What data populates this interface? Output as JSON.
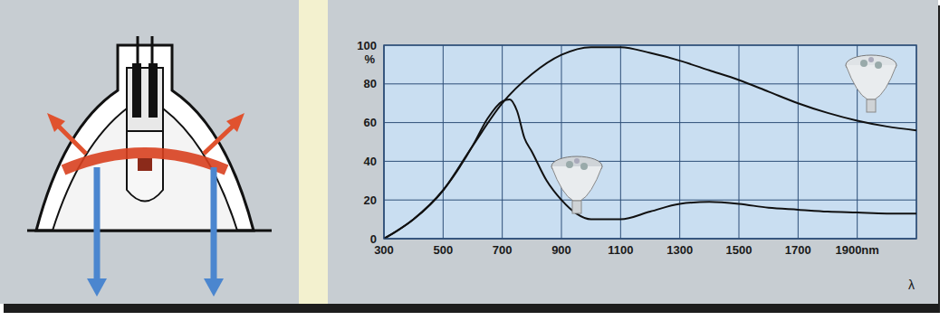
{
  "chart_data": {
    "type": "line",
    "x_label": "λ",
    "y_label": "%",
    "xlim": [
      300,
      2100
    ],
    "xticks": [
      300,
      500,
      700,
      900,
      1100,
      1300,
      1500,
      {
        "value": 1700,
        "label": "1700"
      },
      {
        "value": 1900,
        "label": "1900nm"
      }
    ],
    "ylim": [
      0,
      100
    ],
    "yticks": [
      0,
      20,
      40,
      60,
      80,
      100
    ],
    "grid": true,
    "series": [
      {
        "color": "#111111",
        "line_style": "solid",
        "x": [
          300,
          400,
          500,
          600,
          700,
          800,
          900,
          1000,
          1100,
          1200,
          1300,
          1400,
          1500,
          1600,
          1700,
          1800,
          1900,
          2000,
          2100
        ],
        "values": [
          0,
          10,
          25,
          48,
          70,
          85,
          95,
          99,
          99,
          96,
          92,
          87,
          82,
          76,
          70,
          65,
          61,
          58,
          56
        ]
      },
      {
        "color": "#111111",
        "line_style": "solid",
        "x": [
          300,
          400,
          500,
          600,
          650,
          700,
          725,
          750,
          775,
          800,
          850,
          900,
          950,
          1000,
          1100,
          1200,
          1300,
          1400,
          1500,
          1600,
          1700,
          1800,
          1900,
          2000,
          2100
        ],
        "values": [
          0,
          10,
          25,
          48,
          62,
          71,
          72,
          66,
          52,
          45,
          30,
          20,
          13,
          10,
          10,
          14,
          18,
          19,
          18,
          16,
          15,
          14,
          13.5,
          13,
          13
        ]
      }
    ]
  }
}
